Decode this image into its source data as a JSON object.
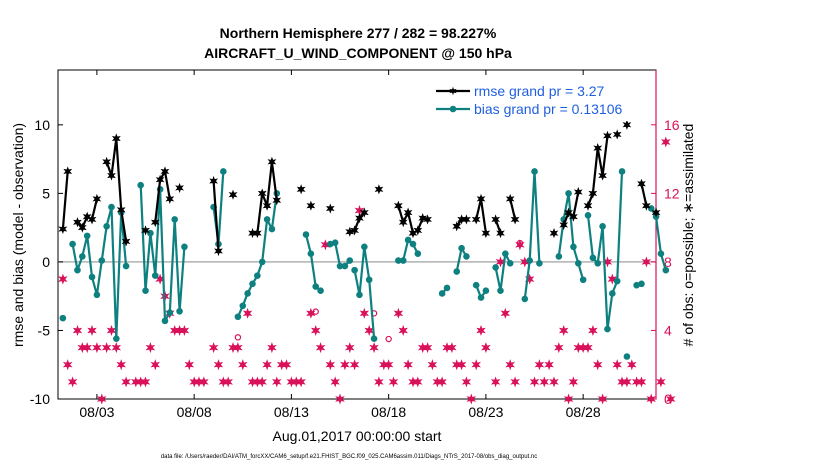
{
  "colors": {
    "rmse": "#000000",
    "bias": "#0e8080",
    "obs": "#d9115a",
    "legend_text": "#1f5fe0",
    "zero_line": "#b0b0b0"
  },
  "chart_data": {
    "type": "line",
    "title_line1": "Northern Hemisphere 277 / 282 = 98.227%",
    "title_line2": "AIRCRAFT_U_WIND_COMPONENT @ 150 hPa",
    "xlabel": "Aug.01,2017 00:00:00 start",
    "ylabel_left": "rmse and bias (model - observation)",
    "ylabel_right": "# of obs: o=possible; ∗=assimilated",
    "footnote": "data file: /Users/raeder/DAI/ATM_forcXX/CAM6_setup/f.e21.FHIST_BGC.f09_025.CAM6assim.011/Diags_NTrS_2017-08/obs_diag_output.nc",
    "xlim": [
      1,
      32
    ],
    "ylim_left": [
      -10,
      14
    ],
    "ylim_right": [
      0,
      19.2
    ],
    "x_ticks": [
      3,
      8,
      13,
      18,
      23,
      28
    ],
    "x_tick_labels": [
      "08/03",
      "08/08",
      "08/13",
      "08/18",
      "08/23",
      "08/28"
    ],
    "y_left_ticks": [
      -10,
      -5,
      0,
      5,
      10
    ],
    "y_left_tick_labels": [
      "-10",
      "-5",
      "0",
      "5",
      "10"
    ],
    "y_right_ticks": [
      0,
      4,
      8,
      12,
      16
    ],
    "y_right_tick_labels": [
      "0",
      "4",
      "8",
      "12",
      "16"
    ],
    "legend": [
      "rmse grand pr = 3.27",
      "bias grand pr = 0.13106"
    ],
    "legend_position": "top-right",
    "series": [
      {
        "name": "rmse",
        "axis": "left",
        "segments": [
          [
            [
              1.25,
              2.4
            ],
            [
              1.5,
              6.6
            ]
          ],
          [
            [
              2.0,
              2.9
            ],
            [
              2.25,
              2.5
            ],
            [
              2.5,
              3.3
            ],
            [
              2.75,
              3.1
            ],
            [
              3.0,
              4.6
            ]
          ],
          [
            [
              3.5,
              7.3
            ],
            [
              3.75,
              6.3
            ],
            [
              4.0,
              9.0
            ],
            [
              4.25,
              3.8
            ],
            [
              4.5,
              1.5
            ]
          ],
          [
            [
              5.5,
              2.3
            ]
          ],
          [
            [
              6.0,
              2.9
            ],
            [
              6.25,
              6.0
            ],
            [
              6.5,
              6.6
            ],
            [
              6.75,
              4.6
            ]
          ],
          [
            [
              7.25,
              5.4
            ]
          ],
          [
            [
              9.0,
              5.9
            ],
            [
              9.25,
              0.8
            ]
          ],
          [
            [
              10.0,
              4.9
            ]
          ],
          [
            [
              11.0,
              2.1
            ],
            [
              11.25,
              2.1
            ],
            [
              11.5,
              5.0
            ],
            [
              11.75,
              4.1
            ],
            [
              12.0,
              7.3
            ],
            [
              12.25,
              4.5
            ]
          ],
          [
            [
              13.5,
              5.3
            ]
          ],
          [
            [
              14.0,
              4.1
            ]
          ],
          [
            [
              15.0,
              3.9
            ]
          ],
          [
            [
              16.0,
              2.2
            ],
            [
              16.25,
              2.3
            ],
            [
              16.5,
              3.2
            ],
            [
              16.75,
              3.6
            ]
          ],
          [
            [
              17.5,
              5.3
            ]
          ],
          [
            [
              18.5,
              4.1
            ],
            [
              18.75,
              2.9
            ],
            [
              19.0,
              3.6
            ],
            [
              19.25,
              2.1
            ],
            [
              19.5,
              2.3
            ],
            [
              19.75,
              3.2
            ],
            [
              20.0,
              3.1
            ]
          ],
          [
            [
              21.5,
              2.6
            ],
            [
              21.75,
              3.1
            ],
            [
              22.0,
              3.1
            ]
          ],
          [
            [
              22.5,
              3.1
            ],
            [
              22.75,
              4.6
            ],
            [
              23.0,
              2.1
            ]
          ],
          [
            [
              23.5,
              3.1
            ],
            [
              23.75,
              2.1
            ]
          ],
          [
            [
              24.25,
              4.6
            ],
            [
              24.5,
              3.1
            ]
          ],
          [
            [
              26.5,
              2.1
            ]
          ],
          [
            [
              27.0,
              2.7
            ],
            [
              27.25,
              3.6
            ],
            [
              27.5,
              3.3
            ],
            [
              27.75,
              5.1
            ]
          ],
          [
            [
              28.25,
              4.1
            ],
            [
              28.5,
              5.0
            ],
            [
              28.75,
              8.3
            ],
            [
              29.0,
              6.3
            ],
            [
              29.25,
              9.2
            ]
          ],
          [
            [
              29.75,
              9.3
            ]
          ],
          [
            [
              30.25,
              10.0
            ]
          ],
          [
            [
              31.0,
              5.7
            ],
            [
              31.25,
              4.1
            ]
          ],
          [
            [
              31.75,
              3.6
            ]
          ]
        ]
      },
      {
        "name": "bias",
        "axis": "left",
        "segments": [
          [
            [
              1.25,
              -4.1
            ]
          ],
          [
            [
              1.75,
              1.3
            ],
            [
              2.0,
              -0.6
            ],
            [
              2.25,
              0.4
            ],
            [
              2.5,
              1.9
            ],
            [
              2.75,
              -1.1
            ],
            [
              3.0,
              -2.4
            ],
            [
              3.25,
              0.1
            ],
            [
              3.5,
              2.6
            ],
            [
              3.75,
              4.0
            ],
            [
              4.0,
              -5.6
            ],
            [
              4.25,
              3.6
            ],
            [
              4.5,
              -0.3
            ]
          ],
          [
            [
              5.25,
              5.6
            ],
            [
              5.5,
              -2.1
            ],
            [
              5.75,
              2.1
            ],
            [
              6.0,
              -1.0
            ],
            [
              6.25,
              5.3
            ],
            [
              6.5,
              -4.3
            ],
            [
              6.75,
              -3.7
            ],
            [
              7.0,
              3.1
            ],
            [
              7.25,
              -3.6
            ],
            [
              7.5,
              1.1
            ]
          ],
          [
            [
              9.0,
              4.0
            ],
            [
              9.25,
              1.3
            ],
            [
              9.5,
              6.6
            ]
          ],
          [
            [
              10.25,
              -4.0
            ],
            [
              10.5,
              -3.2
            ],
            [
              10.75,
              -2.3
            ],
            [
              11.0,
              -1.6
            ],
            [
              11.25,
              -1.0
            ],
            [
              11.5,
              0.0
            ],
            [
              11.75,
              3.1
            ],
            [
              12.0,
              2.4
            ],
            [
              12.25,
              5.0
            ]
          ],
          [
            [
              13.75,
              2.0
            ],
            [
              14.0,
              0.6
            ],
            [
              14.25,
              -1.8
            ],
            [
              14.5,
              -2.1
            ]
          ],
          [
            [
              15.0,
              1.3
            ],
            [
              15.25,
              1.4
            ],
            [
              15.5,
              -0.3
            ],
            [
              15.75,
              -0.3
            ],
            [
              16.0,
              0.1
            ]
          ],
          [
            [
              16.25,
              -0.6
            ],
            [
              16.5,
              -2.4
            ],
            [
              16.75,
              1.1
            ],
            [
              17.0,
              -1.3
            ],
            [
              17.25,
              -5.6
            ]
          ],
          [
            [
              18.5,
              0.1
            ],
            [
              18.75,
              0.1
            ],
            [
              19.0,
              1.6
            ],
            [
              19.25,
              1.3
            ],
            [
              19.5,
              0.6
            ]
          ],
          [
            [
              20.75,
              -2.3
            ],
            [
              21.0,
              -1.9
            ]
          ],
          [
            [
              21.5,
              -0.7
            ],
            [
              21.75,
              1.0
            ],
            [
              22.0,
              0.4
            ]
          ],
          [
            [
              22.5,
              -1.7
            ],
            [
              22.75,
              -2.6
            ],
            [
              23.0,
              -2.1
            ]
          ],
          [
            [
              23.5,
              -0.4
            ],
            [
              23.75,
              -2.1
            ],
            [
              24.0,
              0.6
            ],
            [
              24.25,
              -0.1
            ]
          ],
          [
            [
              25.0,
              -2.7
            ],
            [
              25.25,
              0.1
            ],
            [
              25.5,
              6.6
            ],
            [
              25.75,
              -0.1
            ]
          ],
          [
            [
              26.75,
              0.4
            ],
            [
              27.0,
              3.1
            ],
            [
              27.25,
              5.0
            ],
            [
              27.5,
              1.1
            ],
            [
              27.75,
              -0.1
            ],
            [
              28.0,
              -1.3
            ]
          ],
          [
            [
              28.25,
              3.4
            ],
            [
              28.5,
              0.3
            ],
            [
              28.75,
              -0.1
            ],
            [
              29.0,
              2.6
            ],
            [
              29.25,
              -4.9
            ],
            [
              29.5,
              -2.3
            ],
            [
              29.75,
              -1.4
            ],
            [
              30.0,
              6.6
            ]
          ],
          [
            [
              30.25,
              -6.9
            ]
          ],
          [
            [
              30.75,
              -1.7
            ],
            [
              31.0,
              -1.6
            ]
          ],
          [
            [
              31.5,
              3.9
            ],
            [
              31.75,
              3.3
            ],
            [
              32.0,
              0.6
            ],
            [
              32.25,
              -0.6
            ]
          ]
        ]
      }
    ],
    "obs_possible": [
      [
        1.25,
        7.0
      ],
      [
        1.5,
        2.0
      ],
      [
        1.75,
        1.0
      ],
      [
        2.0,
        4.0
      ],
      [
        2.25,
        3.0
      ],
      [
        2.5,
        3.0
      ],
      [
        2.75,
        4.0
      ],
      [
        3.0,
        3.0
      ],
      [
        3.25,
        0.0
      ],
      [
        3.5,
        3.0
      ],
      [
        3.75,
        4.0
      ],
      [
        4.0,
        3.0
      ],
      [
        4.25,
        2.0
      ],
      [
        4.5,
        1.0
      ],
      [
        5.0,
        1.0
      ],
      [
        5.25,
        1.0
      ],
      [
        5.5,
        1.0
      ],
      [
        5.75,
        3.0
      ],
      [
        6.0,
        2.0
      ],
      [
        6.25,
        7.0
      ],
      [
        6.5,
        6.0
      ],
      [
        6.75,
        5.0
      ],
      [
        7.0,
        4.0
      ],
      [
        7.25,
        4.0
      ],
      [
        7.5,
        4.0
      ],
      [
        7.75,
        2.0
      ],
      [
        8.0,
        1.0
      ],
      [
        8.25,
        1.0
      ],
      [
        8.5,
        1.0
      ],
      [
        9.0,
        3.0
      ],
      [
        9.25,
        2.0
      ],
      [
        9.5,
        1.0
      ],
      [
        9.75,
        1.0
      ],
      [
        10.0,
        3.0
      ],
      [
        10.25,
        3.0
      ],
      [
        10.5,
        2.0
      ],
      [
        10.75,
        5.0
      ],
      [
        11.0,
        1.0
      ],
      [
        11.25,
        1.0
      ],
      [
        11.5,
        1.0
      ],
      [
        11.75,
        2.0
      ],
      [
        12.0,
        3.0
      ],
      [
        12.25,
        1.0
      ],
      [
        12.5,
        2.0
      ],
      [
        12.75,
        2.0
      ],
      [
        13.0,
        1.0
      ],
      [
        13.25,
        1.0
      ],
      [
        13.5,
        1.0
      ],
      [
        14.0,
        5.0
      ],
      [
        14.25,
        4.0
      ],
      [
        14.5,
        3.0
      ],
      [
        14.75,
        9.0
      ],
      [
        15.0,
        2.0
      ],
      [
        15.25,
        1.0
      ],
      [
        15.5,
        0.0
      ],
      [
        15.75,
        2.0
      ],
      [
        16.0,
        3.0
      ],
      [
        16.25,
        2.0
      ],
      [
        16.5,
        11.0
      ],
      [
        16.75,
        5.0
      ],
      [
        17.0,
        4.0
      ],
      [
        17.25,
        3.0
      ],
      [
        17.5,
        1.0
      ],
      [
        17.75,
        2.0
      ],
      [
        18.0,
        2.0
      ],
      [
        18.25,
        1.0
      ],
      [
        18.5,
        5.0
      ],
      [
        18.75,
        4.0
      ],
      [
        19.0,
        2.0
      ],
      [
        19.25,
        1.0
      ],
      [
        19.5,
        1.0
      ],
      [
        19.75,
        3.0
      ],
      [
        20.0,
        3.0
      ],
      [
        20.25,
        2.0
      ],
      [
        20.5,
        1.0
      ],
      [
        20.75,
        1.0
      ],
      [
        21.0,
        3.0
      ],
      [
        21.25,
        3.0
      ],
      [
        21.5,
        2.0
      ],
      [
        21.75,
        2.0
      ],
      [
        22.0,
        1.0
      ],
      [
        22.25,
        0.0
      ],
      [
        22.5,
        2.0
      ],
      [
        22.75,
        4.0
      ],
      [
        23.0,
        3.0
      ],
      [
        23.5,
        1.0
      ],
      [
        23.75,
        8.0
      ],
      [
        24.0,
        5.0
      ],
      [
        24.25,
        2.0
      ],
      [
        24.5,
        1.0
      ],
      [
        24.75,
        9.0
      ],
      [
        25.0,
        8.0
      ],
      [
        25.25,
        7.0
      ],
      [
        25.5,
        1.0
      ],
      [
        25.75,
        2.0
      ],
      [
        26.0,
        1.0
      ],
      [
        26.25,
        2.0
      ],
      [
        26.5,
        1.0
      ],
      [
        26.75,
        3.0
      ],
      [
        27.0,
        4.0
      ],
      [
        27.25,
        0.0
      ],
      [
        27.5,
        1.0
      ],
      [
        27.75,
        3.0
      ],
      [
        28.0,
        3.0
      ],
      [
        28.25,
        3.0
      ],
      [
        28.5,
        4.0
      ],
      [
        28.75,
        2.0
      ],
      [
        29.0,
        0.0
      ],
      [
        29.25,
        8.0
      ],
      [
        29.5,
        7.0
      ],
      [
        29.75,
        2.0
      ],
      [
        30.0,
        1.0
      ],
      [
        30.25,
        1.0
      ],
      [
        30.5,
        2.0
      ],
      [
        30.75,
        1.0
      ],
      [
        31.0,
        1.0
      ],
      [
        31.25,
        8.0
      ],
      [
        31.5,
        0.0
      ],
      [
        32.0,
        1.0
      ],
      [
        32.25,
        15.0
      ],
      [
        32.5,
        0.0
      ]
    ],
    "obs_assimilated_only_markers": [
      [
        10.25,
        3.6
      ],
      [
        14.25,
        5.1
      ],
      [
        17.25,
        5.0
      ],
      [
        18.0,
        3.5
      ],
      [
        24.75,
        9.1
      ]
    ]
  }
}
